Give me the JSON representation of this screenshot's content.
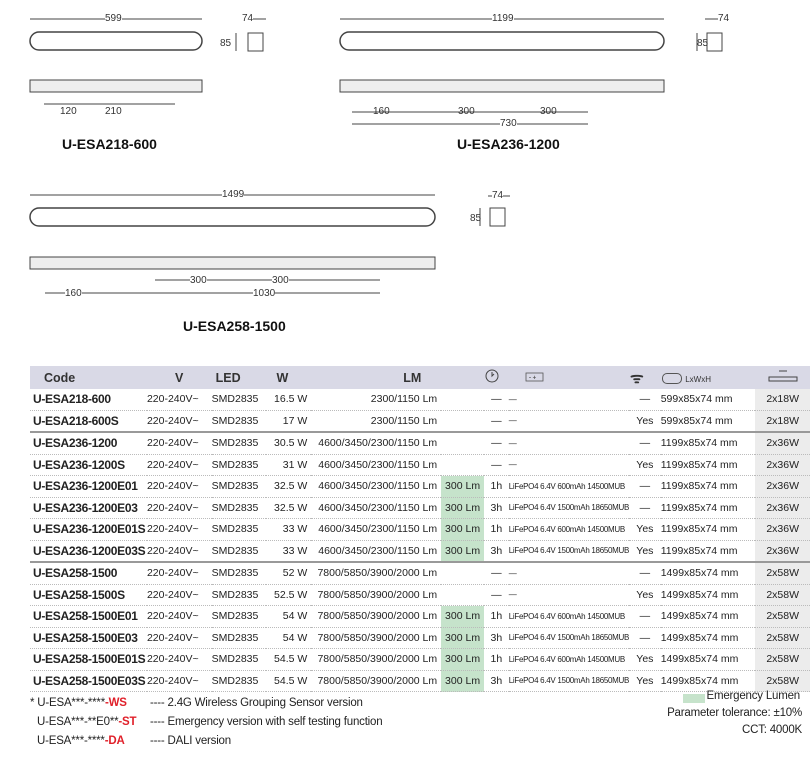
{
  "drawings": [
    {
      "model": "U-ESA218-600",
      "length": "599",
      "w": "74",
      "h": "85",
      "d1": "120",
      "d2": "210"
    },
    {
      "model": "U-ESA236-1200",
      "length": "1199",
      "w": "74",
      "h": "85",
      "d1": "160",
      "d2": "300",
      "d3": "300",
      "d4": "730"
    },
    {
      "model": "U-ESA258-1500",
      "length": "1499",
      "w": "74",
      "h": "85",
      "d1": "160",
      "d2": "300",
      "d3": "300",
      "d4": "1030"
    }
  ],
  "table": {
    "headers": [
      "Code",
      "V",
      "LED",
      "W",
      "LM",
      "",
      "",
      "",
      "",
      "LxWxH",
      ""
    ],
    "header_icons": [
      "clock-icon",
      "battery-icon",
      "wifi-icon",
      "tape-measure-icon",
      "tube-icon"
    ],
    "rows": [
      [
        "U-ESA218-600",
        "220-240V~",
        "SMD2835",
        "16.5 W",
        "2300/1150 Lm",
        "",
        "—",
        "—",
        "—",
        "599x85x74 mm",
        "2x18W"
      ],
      [
        "U-ESA218-600S",
        "220-240V~",
        "SMD2835",
        "17 W",
        "2300/1150 Lm",
        "",
        "—",
        "—",
        "Yes",
        "599x85x74 mm",
        "2x18W"
      ],
      [
        "U-ESA236-1200",
        "220-240V~",
        "SMD2835",
        "30.5 W",
        "4600/3450/2300/1150 Lm",
        "",
        "—",
        "—",
        "—",
        "1199x85x74 mm",
        "2x36W"
      ],
      [
        "U-ESA236-1200S",
        "220-240V~",
        "SMD2835",
        "31 W",
        "4600/3450/2300/1150 Lm",
        "",
        "—",
        "—",
        "Yes",
        "1199x85x74 mm",
        "2x36W"
      ],
      [
        "U-ESA236-1200E01",
        "220-240V~",
        "SMD2835",
        "32.5 W",
        "4600/3450/2300/1150 Lm",
        "300 Lm",
        "1h",
        "LiFePO4 6.4V 600mAh 14500MUB",
        "—",
        "1199x85x74 mm",
        "2x36W"
      ],
      [
        "U-ESA236-1200E03",
        "220-240V~",
        "SMD2835",
        "32.5 W",
        "4600/3450/2300/1150 Lm",
        "300 Lm",
        "3h",
        "LiFePO4 6.4V 1500mAh 18650MUB",
        "—",
        "1199x85x74 mm",
        "2x36W"
      ],
      [
        "U-ESA236-1200E01S",
        "220-240V~",
        "SMD2835",
        "33 W",
        "4600/3450/2300/1150 Lm",
        "300 Lm",
        "1h",
        "LiFePO4 6.4V 600mAh 14500MUB",
        "Yes",
        "1199x85x74 mm",
        "2x36W"
      ],
      [
        "U-ESA236-1200E03S",
        "220-240V~",
        "SMD2835",
        "33 W",
        "4600/3450/2300/1150 Lm",
        "300 Lm",
        "3h",
        "LiFePO4 6.4V 1500mAh 18650MUB",
        "Yes",
        "1199x85x74 mm",
        "2x36W"
      ],
      [
        "U-ESA258-1500",
        "220-240V~",
        "SMD2835",
        "52 W",
        "7800/5850/3900/2000 Lm",
        "",
        "—",
        "—",
        "—",
        "1499x85x74 mm",
        "2x58W"
      ],
      [
        "U-ESA258-1500S",
        "220-240V~",
        "SMD2835",
        "52.5 W",
        "7800/5850/3900/2000 Lm",
        "",
        "—",
        "—",
        "Yes",
        "1499x85x74 mm",
        "2x58W"
      ],
      [
        "U-ESA258-1500E01",
        "220-240V~",
        "SMD2835",
        "54 W",
        "7800/5850/3900/2000 Lm",
        "300 Lm",
        "1h",
        "LiFePO4 6.4V 600mAh 14500MUB",
        "—",
        "1499x85x74 mm",
        "2x58W"
      ],
      [
        "U-ESA258-1500E03",
        "220-240V~",
        "SMD2835",
        "54 W",
        "7800/5850/3900/2000 Lm",
        "300 Lm",
        "3h",
        "LiFePO4 6.4V 1500mAh 18650MUB",
        "—",
        "1499x85x74 mm",
        "2x58W"
      ],
      [
        "U-ESA258-1500E01S",
        "220-240V~",
        "SMD2835",
        "54.5 W",
        "7800/5850/3900/2000 Lm",
        "300 Lm",
        "1h",
        "LiFePO4 6.4V 600mAh 14500MUB",
        "Yes",
        "1499x85x74 mm",
        "2x58W"
      ],
      [
        "U-ESA258-1500E03S",
        "220-240V~",
        "SMD2835",
        "54.5 W",
        "7800/5850/3900/2000 Lm",
        "300 Lm",
        "3h",
        "LiFePO4 6.4V 1500mAh 18650MUB",
        "Yes",
        "1499x85x74 mm",
        "2x58W"
      ]
    ]
  },
  "notes": [
    {
      "prefix": "* U-ESA***-****",
      "suffix": "-WS",
      "desc": "---- 2.4G Wireless Grouping Sensor version"
    },
    {
      "prefix": "U-ESA***-**E0**",
      "suffix": "-ST",
      "desc": "---- Emergency version with self testing function"
    },
    {
      "prefix": "U-ESA***-****",
      "suffix": "-DA",
      "desc": "---- DALI version"
    }
  ],
  "legend": {
    "emergency": "Emergency  Lumen",
    "tolerance": "Parameter tolerance: ±10%",
    "cct": "CCT: 4000K",
    "emergency_color": "#c6e3cb"
  }
}
